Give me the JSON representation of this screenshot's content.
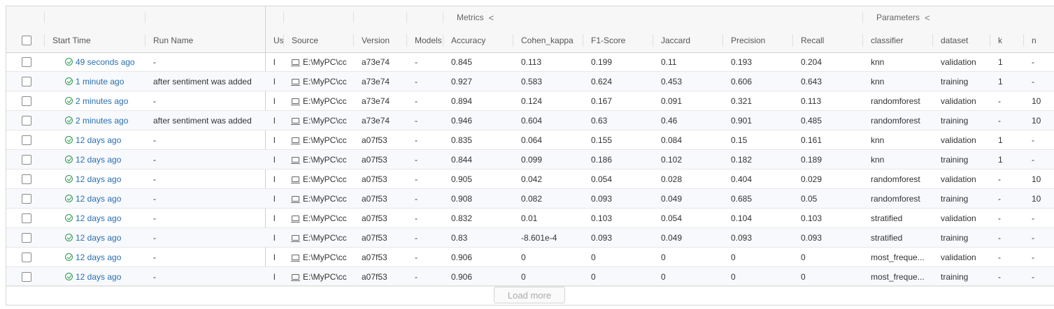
{
  "groups": {
    "metrics": "Metrics",
    "parameters": "Parameters",
    "collapse_icon": "<"
  },
  "columns": {
    "start_time": "Start Time",
    "run_name": "Run Name",
    "user": "Us",
    "source": "Source",
    "version": "Version",
    "models": "Models",
    "accuracy": "Accuracy",
    "cohen_kappa": "Cohen_kappa",
    "f1": "F1-Score",
    "jaccard": "Jaccard",
    "precision": "Precision",
    "recall": "Recall",
    "classifier": "classifier",
    "dataset": "dataset",
    "k": "k",
    "n": "n"
  },
  "rows": [
    {
      "time": "49 seconds ago",
      "run_name": "-",
      "user": "l",
      "source": "E:\\MyPC\\cc",
      "version": "a73e74",
      "models": "-",
      "accuracy": "0.845",
      "cohen_kappa": "0.113",
      "f1": "0.199",
      "jaccard": "0.11",
      "precision": "0.193",
      "recall": "0.204",
      "classifier": "knn",
      "dataset": "validation",
      "k": "1",
      "n": "-"
    },
    {
      "time": "1 minute ago",
      "run_name": "after sentiment was added",
      "user": "l",
      "source": "E:\\MyPC\\cc",
      "version": "a73e74",
      "models": "-",
      "accuracy": "0.927",
      "cohen_kappa": "0.583",
      "f1": "0.624",
      "jaccard": "0.453",
      "precision": "0.606",
      "recall": "0.643",
      "classifier": "knn",
      "dataset": "training",
      "k": "1",
      "n": "-"
    },
    {
      "time": "2 minutes ago",
      "run_name": "-",
      "user": "l",
      "source": "E:\\MyPC\\cc",
      "version": "a73e74",
      "models": "-",
      "accuracy": "0.894",
      "cohen_kappa": "0.124",
      "f1": "0.167",
      "jaccard": "0.091",
      "precision": "0.321",
      "recall": "0.113",
      "classifier": "randomforest",
      "dataset": "validation",
      "k": "-",
      "n": "10"
    },
    {
      "time": "2 minutes ago",
      "run_name": "after sentiment was added",
      "user": "l",
      "source": "E:\\MyPC\\cc",
      "version": "a73e74",
      "models": "-",
      "accuracy": "0.946",
      "cohen_kappa": "0.604",
      "f1": "0.63",
      "jaccard": "0.46",
      "precision": "0.901",
      "recall": "0.485",
      "classifier": "randomforest",
      "dataset": "training",
      "k": "-",
      "n": "10"
    },
    {
      "time": "12 days ago",
      "run_name": "-",
      "user": "l",
      "source": "E:\\MyPC\\cc",
      "version": "a07f53",
      "models": "-",
      "accuracy": "0.835",
      "cohen_kappa": "0.064",
      "f1": "0.155",
      "jaccard": "0.084",
      "precision": "0.15",
      "recall": "0.161",
      "classifier": "knn",
      "dataset": "validation",
      "k": "1",
      "n": "-"
    },
    {
      "time": "12 days ago",
      "run_name": "-",
      "user": "l",
      "source": "E:\\MyPC\\cc",
      "version": "a07f53",
      "models": "-",
      "accuracy": "0.844",
      "cohen_kappa": "0.099",
      "f1": "0.186",
      "jaccard": "0.102",
      "precision": "0.182",
      "recall": "0.189",
      "classifier": "knn",
      "dataset": "training",
      "k": "1",
      "n": "-"
    },
    {
      "time": "12 days ago",
      "run_name": "-",
      "user": "l",
      "source": "E:\\MyPC\\cc",
      "version": "a07f53",
      "models": "-",
      "accuracy": "0.905",
      "cohen_kappa": "0.042",
      "f1": "0.054",
      "jaccard": "0.028",
      "precision": "0.404",
      "recall": "0.029",
      "classifier": "randomforest",
      "dataset": "validation",
      "k": "-",
      "n": "10"
    },
    {
      "time": "12 days ago",
      "run_name": "-",
      "user": "l",
      "source": "E:\\MyPC\\cc",
      "version": "a07f53",
      "models": "-",
      "accuracy": "0.908",
      "cohen_kappa": "0.082",
      "f1": "0.093",
      "jaccard": "0.049",
      "precision": "0.685",
      "recall": "0.05",
      "classifier": "randomforest",
      "dataset": "training",
      "k": "-",
      "n": "10"
    },
    {
      "time": "12 days ago",
      "run_name": "-",
      "user": "l",
      "source": "E:\\MyPC\\cc",
      "version": "a07f53",
      "models": "-",
      "accuracy": "0.832",
      "cohen_kappa": "0.01",
      "f1": "0.103",
      "jaccard": "0.054",
      "precision": "0.104",
      "recall": "0.103",
      "classifier": "stratified",
      "dataset": "validation",
      "k": "-",
      "n": "-"
    },
    {
      "time": "12 days ago",
      "run_name": "-",
      "user": "l",
      "source": "E:\\MyPC\\cc",
      "version": "a07f53",
      "models": "-",
      "accuracy": "0.83",
      "cohen_kappa": "-8.601e-4",
      "f1": "0.093",
      "jaccard": "0.049",
      "precision": "0.093",
      "recall": "0.093",
      "classifier": "stratified",
      "dataset": "training",
      "k": "-",
      "n": "-"
    },
    {
      "time": "12 days ago",
      "run_name": "-",
      "user": "l",
      "source": "E:\\MyPC\\cc",
      "version": "a07f53",
      "models": "-",
      "accuracy": "0.906",
      "cohen_kappa": "0",
      "f1": "0",
      "jaccard": "0",
      "precision": "0",
      "recall": "0",
      "classifier": "most_freque...",
      "dataset": "validation",
      "k": "-",
      "n": "-"
    },
    {
      "time": "12 days ago",
      "run_name": "-",
      "user": "l",
      "source": "E:\\MyPC\\cc",
      "version": "a07f53",
      "models": "-",
      "accuracy": "0.906",
      "cohen_kappa": "0",
      "f1": "0",
      "jaccard": "0",
      "precision": "0",
      "recall": "0",
      "classifier": "most_freque...",
      "dataset": "training",
      "k": "-",
      "n": "-"
    }
  ],
  "load_more": "Load more",
  "colors": {
    "link": "#2a6fb0",
    "success": "#2b9a4b",
    "header_bg": "#f7f7f7",
    "row_alt": "#f7f9fc"
  }
}
